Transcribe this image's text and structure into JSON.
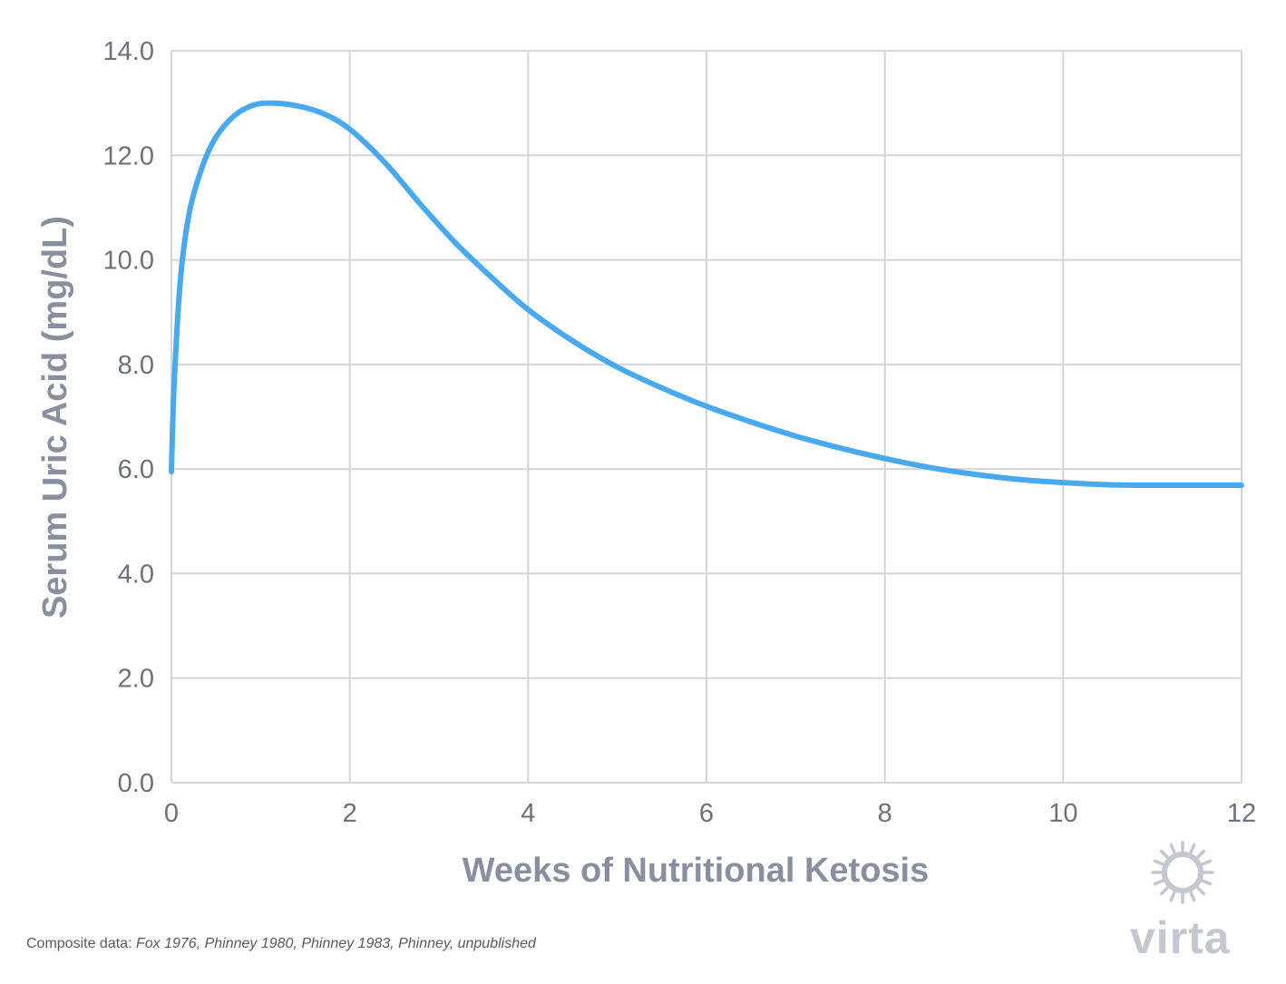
{
  "chart_data": {
    "type": "line",
    "xlabel": "Weeks of Nutritional Ketosis",
    "ylabel": "Serum Uric Acid (mg/dL)",
    "xlim": [
      0,
      12
    ],
    "ylim": [
      0,
      14
    ],
    "x_ticks": [
      0,
      2,
      4,
      6,
      8,
      10,
      12
    ],
    "x_tick_labels": [
      "0",
      "2",
      "4",
      "6",
      "8",
      "10",
      "12"
    ],
    "y_ticks": [
      0,
      2,
      4,
      6,
      8,
      10,
      12,
      14
    ],
    "y_tick_labels": [
      "0.0",
      "2.0",
      "4.0",
      "6.0",
      "8.0",
      "10.0",
      "12.0",
      "14.0"
    ],
    "grid": true,
    "legend": "none",
    "series": [
      {
        "color": "#48a9ef",
        "x": [
          0,
          0.03,
          0.1,
          0.2,
          0.35,
          0.5,
          0.7,
          0.9,
          1.1,
          1.4,
          1.7,
          2.0,
          2.4,
          2.8,
          3.2,
          3.6,
          4.0,
          4.5,
          5.0,
          5.5,
          6.0,
          6.5,
          7.0,
          7.5,
          8.0,
          8.5,
          9.0,
          9.5,
          10.0,
          10.5,
          11.0,
          11.5,
          12.0
        ],
        "y": [
          5.95,
          7.6,
          9.6,
          10.9,
          11.8,
          12.35,
          12.75,
          12.95,
          13.0,
          12.95,
          12.8,
          12.5,
          11.85,
          11.05,
          10.3,
          9.65,
          9.05,
          8.45,
          7.95,
          7.55,
          7.2,
          6.9,
          6.63,
          6.4,
          6.2,
          6.03,
          5.9,
          5.8,
          5.74,
          5.7,
          5.69,
          5.69,
          5.69
        ]
      }
    ]
  },
  "footnote": {
    "prefix": "Composite data:",
    "sources": "Fox 1976, Phinney 1980, Phinney 1983, Phinney, unpublished"
  },
  "brand": {
    "name": "virta",
    "logo_icon": "sun-icon",
    "color": "#c4c7cf"
  },
  "colors": {
    "grid": "#d2d5da",
    "tick_text": "#6d717a",
    "axis_title": "#8a8fa0",
    "line": "#48a9ef"
  }
}
